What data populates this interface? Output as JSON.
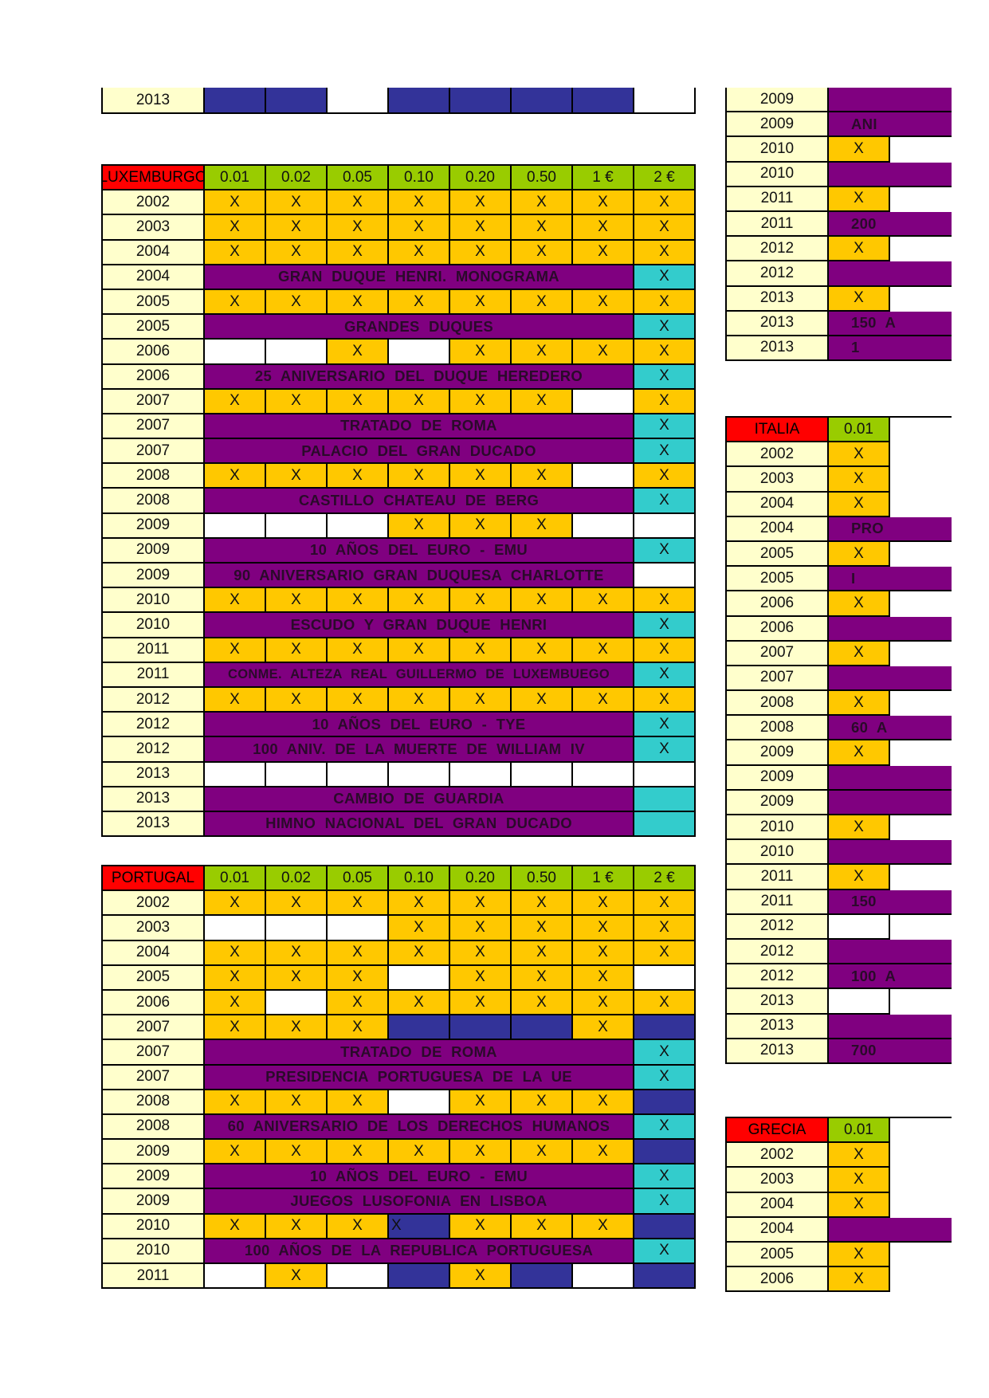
{
  "denominations": [
    "0.01",
    "0.02",
    "0.05",
    "0.10",
    "0.20",
    "0.50",
    "1 €",
    "2 €"
  ],
  "top_fragment": {
    "row": {
      "year": "2013",
      "cells": [
        "b",
        "b",
        "w",
        "b",
        "b",
        "b",
        "b",
        "w"
      ]
    }
  },
  "luxemburgo": {
    "country": "LUXEMBURGO",
    "rows": [
      {
        "year": "2002",
        "cells": [
          "x",
          "x",
          "x",
          "x",
          "x",
          "x",
          "x",
          "x"
        ]
      },
      {
        "year": "2003",
        "cells": [
          "x",
          "x",
          "x",
          "x",
          "x",
          "x",
          "x",
          "x"
        ]
      },
      {
        "year": "2004",
        "cells": [
          "x",
          "x",
          "x",
          "x",
          "x",
          "x",
          "x",
          "x"
        ]
      },
      {
        "year": "2004",
        "comm": "GRAN  DUQUE  HENRI.  MONOGRAMA",
        "two": "t",
        "two_x": true
      },
      {
        "year": "2005",
        "cells": [
          "x",
          "x",
          "x",
          "x",
          "x",
          "x",
          "x",
          "x"
        ]
      },
      {
        "year": "2005",
        "comm": "GRANDES  DUQUES",
        "two": "t",
        "two_x": true
      },
      {
        "year": "2006",
        "cells": [
          "w",
          "w",
          "x",
          "w",
          "x",
          "x",
          "x",
          "x"
        ]
      },
      {
        "year": "2006",
        "comm": "25  ANIVERSARIO  DEL DUQUE  HEREDERO",
        "two": "t",
        "two_x": true
      },
      {
        "year": "2007",
        "cells": [
          "x",
          "x",
          "x",
          "x",
          "x",
          "x",
          "w",
          "x"
        ]
      },
      {
        "year": "2007",
        "comm": "TRATADO  DE  ROMA",
        "two": "t",
        "two_x": true
      },
      {
        "year": "2007",
        "comm": "PALACIO  DEL  GRAN  DUCADO",
        "two": "t",
        "two_x": true
      },
      {
        "year": "2008",
        "cells": [
          "x",
          "x",
          "x",
          "x",
          "x",
          "x",
          "w",
          "x"
        ]
      },
      {
        "year": "2008",
        "comm": "CASTILLO  CHATEAU  DE  BERG",
        "two": "t",
        "two_x": true
      },
      {
        "year": "2009",
        "cells": [
          "w",
          "w",
          "w",
          "x",
          "x",
          "x",
          "w",
          "w"
        ]
      },
      {
        "year": "2009",
        "comm": "10  AÑOS  DEL  EURO - EMU",
        "two": "t",
        "two_x": true
      },
      {
        "year": "2009",
        "comm": "90  ANIVERSARIO  GRAN  DUQUESA  CHARLOTTE",
        "two": "w",
        "two_x": false
      },
      {
        "year": "2010",
        "cells": [
          "x",
          "x",
          "x",
          "x",
          "x",
          "x",
          "x",
          "x"
        ]
      },
      {
        "year": "2010",
        "comm": "ESCUDO  Y  GRAN  DUQUE  HENRI",
        "two": "t",
        "two_x": true
      },
      {
        "year": "2011",
        "cells": [
          "x",
          "x",
          "x",
          "x",
          "x",
          "x",
          "x",
          "x"
        ]
      },
      {
        "year": "2011",
        "comm": "CONME.  ALTEZA  REAL  GUILLERMO  DE  LUXEMBUEGO",
        "two": "t",
        "two_x": true,
        "small": true
      },
      {
        "year": "2012",
        "cells": [
          "x",
          "x",
          "x",
          "x",
          "x",
          "x",
          "x",
          "x"
        ]
      },
      {
        "year": "2012",
        "comm": "10  AÑOS  DEL  EURO - TYE",
        "two": "t",
        "two_x": true
      },
      {
        "year": "2012",
        "comm": "100  ANIV.  DE  LA  MUERTE  DE  WILLIAM  IV",
        "two": "t",
        "two_x": true
      },
      {
        "year": "2013",
        "cells": [
          "w",
          "w",
          "w",
          "w",
          "w",
          "w",
          "w",
          "w"
        ]
      },
      {
        "year": "2013",
        "comm": "CAMBIO  DE  GUARDIA",
        "two": "t",
        "two_x": false
      },
      {
        "year": "2013",
        "comm": "HIMNO  NACIONAL  DEL  GRAN  DUCADO",
        "two": "t",
        "two_x": false
      }
    ]
  },
  "portugal": {
    "country": "PORTUGAL",
    "rows": [
      {
        "year": "2002",
        "cells": [
          "x",
          "x",
          "x",
          "x",
          "x",
          "x",
          "x",
          "x"
        ]
      },
      {
        "year": "2003",
        "cells": [
          "w",
          "w",
          "w",
          "x",
          "x",
          "x",
          "x",
          "x"
        ]
      },
      {
        "year": "2004",
        "cells": [
          "x",
          "x",
          "x",
          "x",
          "x",
          "x",
          "x",
          "x"
        ]
      },
      {
        "year": "2005",
        "cells": [
          "x",
          "x",
          "x",
          "w",
          "x",
          "x",
          "x",
          "w"
        ]
      },
      {
        "year": "2006",
        "cells": [
          "x",
          "w",
          "x",
          "x",
          "x",
          "x",
          "x",
          "x"
        ]
      },
      {
        "year": "2007",
        "cells": [
          "x",
          "x",
          "x",
          "b",
          "b",
          "b",
          "x",
          "b"
        ]
      },
      {
        "year": "2007",
        "comm": "TRATADO  DE  ROMA",
        "two": "t",
        "two_x": true
      },
      {
        "year": "2007",
        "comm": "PRESIDENCIA  PORTUGUESA  DE  LA  UE",
        "two": "t",
        "two_x": true
      },
      {
        "year": "2008",
        "cells": [
          "x",
          "x",
          "x",
          "w",
          "x",
          "x",
          "x",
          "b"
        ]
      },
      {
        "year": "2008",
        "comm": "60  ANIVERSARIO  DE  LOS  DERECHOS  HUMANOS",
        "two": "t",
        "two_x": true
      },
      {
        "year": "2009",
        "cells": [
          "x",
          "x",
          "x",
          "x",
          "x",
          "x",
          "x",
          "b"
        ]
      },
      {
        "year": "2009",
        "comm": "10  AÑOS  DEL  EURO - EMU",
        "two": "t",
        "two_x": true
      },
      {
        "year": "2009",
        "comm": "JUEGOS  LUSOFONIA  EN  LISBOA",
        "two": "t",
        "two_x": true
      },
      {
        "year": "2010",
        "cells": [
          "x",
          "x",
          "x",
          "bx",
          "x",
          "x",
          "x",
          "b"
        ]
      },
      {
        "year": "2010",
        "comm": "100  AÑOS  DE  LA  REPUBLICA  PORTUGUESA",
        "two": "t",
        "two_x": true
      },
      {
        "year": "2011",
        "cells": [
          "w",
          "x",
          "w",
          "b",
          "x",
          "b",
          "w",
          "b"
        ]
      }
    ]
  },
  "right_top": {
    "rows": [
      {
        "year": "2009",
        "c1": "p",
        "text": ""
      },
      {
        "year": "2009",
        "c1": "p",
        "text": "ANI"
      },
      {
        "year": "2010",
        "c1": "x",
        "text": ""
      },
      {
        "year": "2010",
        "c1": "p",
        "text": ""
      },
      {
        "year": "2011",
        "c1": "x",
        "text": ""
      },
      {
        "year": "2011",
        "c1": "p",
        "text": "200"
      },
      {
        "year": "2012",
        "c1": "x",
        "text": ""
      },
      {
        "year": "2012",
        "c1": "p",
        "text": ""
      },
      {
        "year": "2013",
        "c1": "x",
        "text": ""
      },
      {
        "year": "2013",
        "c1": "p",
        "text": "150  A"
      },
      {
        "year": "2013",
        "c1": "p",
        "text": "1"
      }
    ]
  },
  "italia": {
    "country": "ITALIA",
    "header_denom": "0.01",
    "rows": [
      {
        "year": "2002",
        "c1": "x",
        "text": ""
      },
      {
        "year": "2003",
        "c1": "x",
        "text": ""
      },
      {
        "year": "2004",
        "c1": "x",
        "text": ""
      },
      {
        "year": "2004",
        "c1": "p",
        "text": "PRO"
      },
      {
        "year": "2005",
        "c1": "x",
        "text": ""
      },
      {
        "year": "2005",
        "c1": "p",
        "text": "I"
      },
      {
        "year": "2006",
        "c1": "x",
        "text": ""
      },
      {
        "year": "2006",
        "c1": "p",
        "text": ""
      },
      {
        "year": "2007",
        "c1": "x",
        "text": ""
      },
      {
        "year": "2007",
        "c1": "p",
        "text": ""
      },
      {
        "year": "2008",
        "c1": "x",
        "text": ""
      },
      {
        "year": "2008",
        "c1": "p",
        "text": "60  A"
      },
      {
        "year": "2009",
        "c1": "x",
        "text": ""
      },
      {
        "year": "2009",
        "c1": "p",
        "text": ""
      },
      {
        "year": "2009",
        "c1": "p",
        "text": ""
      },
      {
        "year": "2010",
        "c1": "x",
        "text": ""
      },
      {
        "year": "2010",
        "c1": "p",
        "text": ""
      },
      {
        "year": "2011",
        "c1": "x",
        "text": ""
      },
      {
        "year": "2011",
        "c1": "p",
        "text": "150"
      },
      {
        "year": "2012",
        "c1": "w",
        "text": ""
      },
      {
        "year": "2012",
        "c1": "p",
        "text": ""
      },
      {
        "year": "2012",
        "c1": "p",
        "text": "100  A"
      },
      {
        "year": "2013",
        "c1": "w",
        "text": ""
      },
      {
        "year": "2013",
        "c1": "p",
        "text": ""
      },
      {
        "year": "2013",
        "c1": "p",
        "text": "700"
      }
    ]
  },
  "grecia": {
    "country": "GRECIA",
    "header_denom": "0.01",
    "rows": [
      {
        "year": "2002",
        "c1": "x",
        "text": ""
      },
      {
        "year": "2003",
        "c1": "x",
        "text": ""
      },
      {
        "year": "2004",
        "c1": "x",
        "text": ""
      },
      {
        "year": "2004",
        "c1": "p",
        "text": ""
      },
      {
        "year": "2005",
        "c1": "x",
        "text": ""
      },
      {
        "year": "2006",
        "c1": "x",
        "text": ""
      }
    ]
  },
  "mark": "X",
  "colors": {
    "year": "#ffffcc",
    "coin": "#ffc800",
    "commemorative": "#800080",
    "two_euro": "#33cccc",
    "header": "#99cc00",
    "country": "#ff0000",
    "blue": "#333399"
  }
}
